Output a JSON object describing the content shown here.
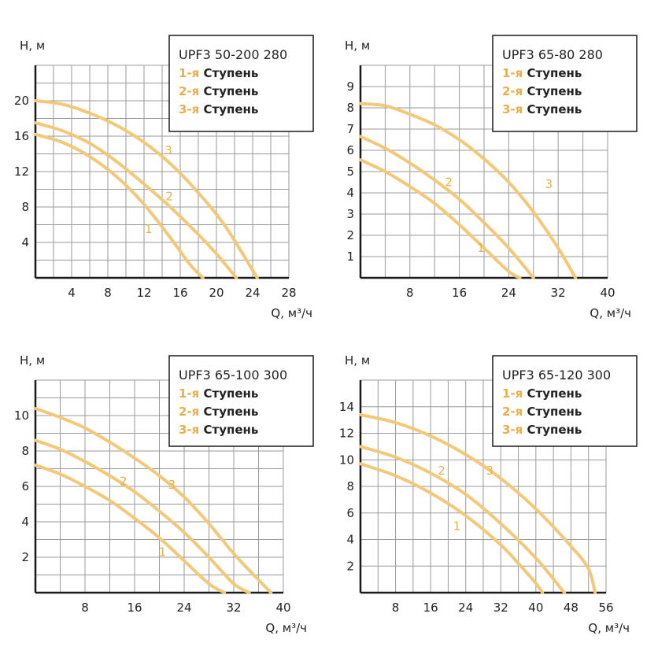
{
  "colors": {
    "curve": "#F2C879",
    "accent": "#E8B04B",
    "grid": "#9a9a9a",
    "axis": "#1a1a1a"
  },
  "chart_data": [
    {
      "type": "line",
      "model": "UPF3 50-200 280",
      "xlabel": "Q, м³/ч",
      "ylabel": "H, м",
      "xlim": [
        0,
        28
      ],
      "ylim": [
        0,
        24
      ],
      "xticks": [
        4,
        8,
        12,
        16,
        20,
        24,
        28
      ],
      "yticks": [
        4,
        8,
        12,
        16,
        20
      ],
      "xgrid": [
        2,
        4,
        6,
        8,
        10,
        12,
        14,
        16,
        18,
        20,
        22,
        24,
        26,
        28
      ],
      "ygrid": [
        2,
        4,
        6,
        8,
        10,
        12,
        14,
        16,
        18,
        20,
        22,
        24
      ],
      "legend": [
        {
          "prefix": "1-я",
          "text": "Ступень"
        },
        {
          "prefix": "2-я",
          "text": "Ступень"
        },
        {
          "prefix": "3-я",
          "text": "Ступень"
        }
      ],
      "series": [
        {
          "label": "1",
          "label_at": [
            12.5,
            5.5
          ],
          "x": [
            0,
            3,
            6,
            9,
            12,
            15,
            17,
            18.5
          ],
          "y": [
            16.2,
            15.3,
            13.7,
            11.4,
            8.3,
            4.4,
            1.6,
            0
          ]
        },
        {
          "label": "2",
          "label_at": [
            14.8,
            9.2
          ],
          "x": [
            0,
            3,
            6,
            9,
            12,
            15,
            18,
            20,
            22.2
          ],
          "y": [
            17.5,
            16.6,
            15.2,
            13.1,
            10.6,
            7.9,
            4.9,
            2.7,
            0
          ]
        },
        {
          "label": "3",
          "label_at": [
            14.7,
            14.4
          ],
          "x": [
            0,
            3,
            6,
            9,
            12,
            15,
            18,
            21,
            24.5
          ],
          "y": [
            20,
            19.6,
            18.6,
            17.2,
            15.3,
            12.8,
            9.6,
            5.8,
            0
          ]
        }
      ]
    },
    {
      "type": "line",
      "model": "UPF3 65-80 280",
      "xlabel": "Q, м³/ч",
      "ylabel": "H, м",
      "xlim": [
        0,
        40
      ],
      "ylim": [
        0,
        10
      ],
      "xticks": [
        8,
        16,
        24,
        32,
        40
      ],
      "yticks": [
        1,
        2,
        3,
        4,
        5,
        6,
        7,
        8,
        9
      ],
      "xgrid": [
        4,
        8,
        12,
        16,
        20,
        24,
        28,
        32,
        36,
        40
      ],
      "ygrid": [
        1,
        2,
        3,
        4,
        5,
        6,
        7,
        8,
        9,
        10
      ],
      "legend": [
        {
          "prefix": "1-я",
          "text": "Ступень"
        },
        {
          "prefix": "2-я",
          "text": "Ступень"
        },
        {
          "prefix": "3-я",
          "text": "Ступень"
        }
      ],
      "series": [
        {
          "label": "1",
          "label_at": [
            19.5,
            1.4
          ],
          "x": [
            0,
            4,
            8,
            12,
            16,
            20,
            24,
            25.8
          ],
          "y": [
            5.55,
            5.0,
            4.3,
            3.5,
            2.5,
            1.4,
            0.3,
            0
          ]
        },
        {
          "label": "2",
          "label_at": [
            14.3,
            4.5
          ],
          "x": [
            0,
            4,
            8,
            12,
            16,
            20,
            24,
            28
          ],
          "y": [
            6.65,
            6.1,
            5.4,
            4.6,
            3.7,
            2.6,
            1.4,
            0
          ]
        },
        {
          "label": "3",
          "label_at": [
            30.5,
            4.4
          ],
          "x": [
            0,
            4,
            8,
            12,
            16,
            20,
            24,
            28,
            32,
            34.8
          ],
          "y": [
            8.2,
            8.1,
            7.7,
            7.2,
            6.5,
            5.6,
            4.5,
            3.1,
            1.4,
            0
          ]
        }
      ]
    },
    {
      "type": "line",
      "model": "UPF3 65-100 300",
      "xlabel": "Q, м³/ч",
      "ylabel": "H, м",
      "xlim": [
        0,
        40
      ],
      "ylim": [
        0,
        12
      ],
      "xticks": [
        8,
        16,
        24,
        32,
        40
      ],
      "yticks": [
        2,
        4,
        6,
        8,
        10
      ],
      "xgrid": [
        4,
        8,
        12,
        16,
        20,
        24,
        28,
        32,
        36,
        40
      ],
      "ygrid": [
        1,
        2,
        3,
        4,
        5,
        6,
        7,
        8,
        9,
        10,
        11,
        12
      ],
      "legend": [
        {
          "prefix": "1-я",
          "text": "Ступень"
        },
        {
          "prefix": "2-я",
          "text": "Ступень"
        },
        {
          "prefix": "3-я",
          "text": "Ступень"
        }
      ],
      "series": [
        {
          "label": "1",
          "label_at": [
            20.5,
            2.3
          ],
          "x": [
            0,
            4,
            8,
            12,
            16,
            20,
            24,
            28,
            30.5
          ],
          "y": [
            7.2,
            6.7,
            6.0,
            5.2,
            4.2,
            3.1,
            1.8,
            0.5,
            0
          ]
        },
        {
          "label": "2",
          "label_at": [
            14.2,
            6.3
          ],
          "x": [
            0,
            4,
            8,
            12,
            16,
            20,
            24,
            28,
            32,
            34.5
          ],
          "y": [
            8.6,
            8.1,
            7.4,
            6.6,
            5.7,
            4.6,
            3.4,
            2.0,
            0.5,
            0
          ]
        },
        {
          "label": "3",
          "label_at": [
            22,
            6.1
          ],
          "x": [
            0,
            4,
            8,
            12,
            16,
            20,
            24,
            28,
            32,
            35.5,
            38
          ],
          "y": [
            10.4,
            9.9,
            9.3,
            8.5,
            7.6,
            6.6,
            5.4,
            3.9,
            2.2,
            0.9,
            0
          ]
        }
      ]
    },
    {
      "type": "line",
      "model": "UPF3 65-120 300",
      "xlabel": "Q, м³/ч",
      "ylabel": "H, м",
      "xlim": [
        0,
        56
      ],
      "ylim": [
        0,
        16
      ],
      "xticks": [
        8,
        16,
        24,
        32,
        40,
        48,
        56
      ],
      "yticks": [
        2,
        4,
        6,
        8,
        10,
        12,
        14
      ],
      "xgrid": [
        4,
        8,
        12,
        16,
        20,
        24,
        28,
        32,
        36,
        40,
        44,
        48,
        52,
        56
      ],
      "ygrid": [
        2,
        4,
        6,
        8,
        10,
        12,
        14,
        16
      ],
      "legend": [
        {
          "prefix": "1-я",
          "text": "Ступень"
        },
        {
          "prefix": "2-я",
          "text": "Ступень"
        },
        {
          "prefix": "3-я",
          "text": "Ступень"
        }
      ],
      "series": [
        {
          "label": "1",
          "label_at": [
            22,
            5.0
          ],
          "x": [
            0,
            8,
            16,
            24,
            32,
            36,
            40,
            41.5
          ],
          "y": [
            9.7,
            8.8,
            7.5,
            5.8,
            3.6,
            2.2,
            0.7,
            0
          ]
        },
        {
          "label": "2",
          "label_at": [
            18.5,
            9.2
          ],
          "x": [
            0,
            8,
            16,
            24,
            32,
            40,
            46.5
          ],
          "y": [
            11.0,
            10.2,
            9.0,
            7.4,
            5.2,
            2.6,
            0
          ]
        },
        {
          "label": "3",
          "label_at": [
            29.5,
            9.2
          ],
          "x": [
            0,
            8,
            16,
            24,
            32,
            40,
            48,
            52,
            53.5
          ],
          "y": [
            13.4,
            12.8,
            11.8,
            10.4,
            8.6,
            6.3,
            3.5,
            1.8,
            0
          ]
        }
      ]
    }
  ]
}
